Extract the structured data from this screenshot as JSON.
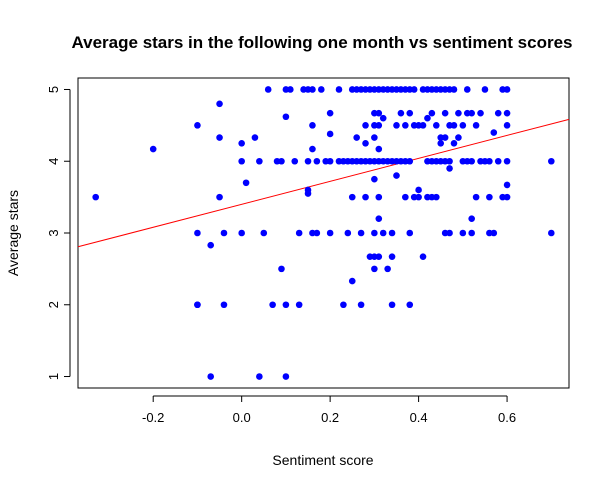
{
  "chart_data": {
    "type": "scatter",
    "title": "Average stars in the following one month vs sentiment scores",
    "xlabel": "Sentiment score",
    "ylabel": "Average stars",
    "xlim": [
      -0.37,
      0.74
    ],
    "ylim": [
      0.84,
      5.16
    ],
    "x_ticks": [
      "-0.2",
      "0.0",
      "0.2",
      "0.4",
      "0.6"
    ],
    "x_tick_values": [
      -0.2,
      0.0,
      0.2,
      0.4,
      0.6
    ],
    "y_ticks": [
      "1",
      "2",
      "3",
      "4",
      "5"
    ],
    "y_tick_values": [
      1,
      2,
      3,
      4,
      5
    ],
    "grid": false,
    "point_color": "#0000ff",
    "regression_line": {
      "color": "#ff0000",
      "intercept": 3.4,
      "slope": 1.6
    },
    "points": [
      [
        -0.33,
        3.5
      ],
      [
        -0.2,
        4.17
      ],
      [
        -0.1,
        4.5
      ],
      [
        -0.1,
        3.0
      ],
      [
        -0.1,
        2.0
      ],
      [
        -0.1,
        2.0
      ],
      [
        -0.07,
        2.83
      ],
      [
        -0.07,
        1.0
      ],
      [
        -0.05,
        4.8
      ],
      [
        -0.05,
        4.33
      ],
      [
        -0.05,
        3.5
      ],
      [
        -0.04,
        3.0
      ],
      [
        -0.04,
        2.0
      ],
      [
        0.0,
        4.25
      ],
      [
        0.0,
        4.0
      ],
      [
        0.0,
        3.0
      ],
      [
        0.01,
        3.7
      ],
      [
        0.03,
        4.33
      ],
      [
        0.04,
        4.0
      ],
      [
        0.04,
        1.0
      ],
      [
        0.05,
        3.0
      ],
      [
        0.06,
        5.0
      ],
      [
        0.07,
        2.0
      ],
      [
        0.08,
        4.0
      ],
      [
        0.09,
        4.0
      ],
      [
        0.09,
        2.5
      ],
      [
        0.1,
        5.0
      ],
      [
        0.1,
        4.62
      ],
      [
        0.1,
        2.0
      ],
      [
        0.1,
        1.0
      ],
      [
        0.11,
        5.0
      ],
      [
        0.12,
        4.0
      ],
      [
        0.13,
        3.0
      ],
      [
        0.13,
        2.0
      ],
      [
        0.14,
        5.0
      ],
      [
        0.15,
        5.0
      ],
      [
        0.15,
        4.0
      ],
      [
        0.15,
        3.6
      ],
      [
        0.15,
        3.55
      ],
      [
        0.16,
        5.0
      ],
      [
        0.16,
        4.5
      ],
      [
        0.16,
        4.17
      ],
      [
        0.16,
        3.0
      ],
      [
        0.17,
        4.0
      ],
      [
        0.17,
        3.0
      ],
      [
        0.18,
        5.0
      ],
      [
        0.19,
        4.0
      ],
      [
        0.2,
        4.67
      ],
      [
        0.2,
        4.38
      ],
      [
        0.2,
        4.0
      ],
      [
        0.2,
        3.0
      ],
      [
        0.22,
        5.0
      ],
      [
        0.22,
        4.0
      ],
      [
        0.23,
        4.0
      ],
      [
        0.23,
        2.0
      ],
      [
        0.24,
        4.0
      ],
      [
        0.24,
        3.0
      ],
      [
        0.25,
        5.0
      ],
      [
        0.25,
        4.0
      ],
      [
        0.25,
        3.5
      ],
      [
        0.25,
        2.33
      ],
      [
        0.26,
        5.0
      ],
      [
        0.26,
        4.33
      ],
      [
        0.26,
        4.0
      ],
      [
        0.27,
        5.0
      ],
      [
        0.27,
        4.0
      ],
      [
        0.27,
        3.0
      ],
      [
        0.27,
        2.0
      ],
      [
        0.28,
        5.0
      ],
      [
        0.28,
        4.5
      ],
      [
        0.28,
        4.25
      ],
      [
        0.28,
        4.0
      ],
      [
        0.28,
        3.5
      ],
      [
        0.29,
        5.0
      ],
      [
        0.29,
        4.0
      ],
      [
        0.29,
        2.67
      ],
      [
        0.3,
        5.0
      ],
      [
        0.3,
        4.67
      ],
      [
        0.3,
        4.5
      ],
      [
        0.3,
        4.33
      ],
      [
        0.3,
        4.0
      ],
      [
        0.3,
        3.75
      ],
      [
        0.3,
        3.0
      ],
      [
        0.3,
        2.67
      ],
      [
        0.3,
        2.5
      ],
      [
        0.31,
        5.0
      ],
      [
        0.31,
        4.67
      ],
      [
        0.31,
        4.5
      ],
      [
        0.31,
        4.17
      ],
      [
        0.31,
        4.0
      ],
      [
        0.31,
        3.5
      ],
      [
        0.31,
        3.2
      ],
      [
        0.31,
        2.67
      ],
      [
        0.32,
        5.0
      ],
      [
        0.32,
        4.6
      ],
      [
        0.32,
        4.0
      ],
      [
        0.32,
        3.0
      ],
      [
        0.33,
        5.0
      ],
      [
        0.33,
        4.0
      ],
      [
        0.33,
        2.5
      ],
      [
        0.34,
        5.0
      ],
      [
        0.34,
        4.0
      ],
      [
        0.34,
        3.0
      ],
      [
        0.34,
        2.67
      ],
      [
        0.34,
        2.0
      ],
      [
        0.35,
        5.0
      ],
      [
        0.35,
        4.5
      ],
      [
        0.35,
        4.0
      ],
      [
        0.35,
        3.8
      ],
      [
        0.36,
        5.0
      ],
      [
        0.36,
        4.67
      ],
      [
        0.36,
        4.0
      ],
      [
        0.37,
        5.0
      ],
      [
        0.37,
        4.5
      ],
      [
        0.37,
        4.0
      ],
      [
        0.37,
        3.5
      ],
      [
        0.38,
        5.0
      ],
      [
        0.38,
        4.67
      ],
      [
        0.38,
        4.0
      ],
      [
        0.38,
        3.0
      ],
      [
        0.38,
        2.0
      ],
      [
        0.39,
        5.0
      ],
      [
        0.39,
        4.5
      ],
      [
        0.39,
        3.5
      ],
      [
        0.4,
        4.5
      ],
      [
        0.4,
        3.6
      ],
      [
        0.4,
        3.5
      ],
      [
        0.41,
        5.0
      ],
      [
        0.41,
        4.5
      ],
      [
        0.41,
        2.67
      ],
      [
        0.42,
        5.0
      ],
      [
        0.42,
        4.6
      ],
      [
        0.42,
        4.0
      ],
      [
        0.42,
        3.5
      ],
      [
        0.43,
        5.0
      ],
      [
        0.43,
        4.67
      ],
      [
        0.43,
        4.0
      ],
      [
        0.43,
        3.5
      ],
      [
        0.44,
        5.0
      ],
      [
        0.44,
        4.5
      ],
      [
        0.44,
        4.0
      ],
      [
        0.44,
        3.5
      ],
      [
        0.45,
        5.0
      ],
      [
        0.45,
        4.33
      ],
      [
        0.45,
        4.25
      ],
      [
        0.45,
        4.0
      ],
      [
        0.46,
        5.0
      ],
      [
        0.46,
        4.67
      ],
      [
        0.46,
        4.33
      ],
      [
        0.46,
        4.0
      ],
      [
        0.46,
        3.0
      ],
      [
        0.47,
        5.0
      ],
      [
        0.47,
        4.5
      ],
      [
        0.47,
        4.0
      ],
      [
        0.47,
        3.9
      ],
      [
        0.47,
        3.0
      ],
      [
        0.48,
        5.0
      ],
      [
        0.48,
        4.5
      ],
      [
        0.48,
        4.25
      ],
      [
        0.49,
        4.67
      ],
      [
        0.49,
        4.33
      ],
      [
        0.5,
        4.5
      ],
      [
        0.5,
        4.0
      ],
      [
        0.5,
        3.0
      ],
      [
        0.51,
        5.0
      ],
      [
        0.51,
        4.67
      ],
      [
        0.51,
        4.0
      ],
      [
        0.52,
        4.67
      ],
      [
        0.52,
        4.0
      ],
      [
        0.52,
        3.2
      ],
      [
        0.52,
        3.0
      ],
      [
        0.53,
        4.5
      ],
      [
        0.53,
        3.5
      ],
      [
        0.54,
        4.67
      ],
      [
        0.54,
        4.0
      ],
      [
        0.55,
        5.0
      ],
      [
        0.55,
        4.0
      ],
      [
        0.56,
        4.0
      ],
      [
        0.56,
        3.5
      ],
      [
        0.56,
        3.0
      ],
      [
        0.57,
        4.4
      ],
      [
        0.57,
        3.0
      ],
      [
        0.58,
        4.67
      ],
      [
        0.58,
        4.0
      ],
      [
        0.59,
        5.0
      ],
      [
        0.59,
        3.5
      ],
      [
        0.6,
        5.0
      ],
      [
        0.6,
        4.67
      ],
      [
        0.6,
        4.5
      ],
      [
        0.6,
        4.0
      ],
      [
        0.6,
        3.67
      ],
      [
        0.6,
        3.5
      ],
      [
        0.7,
        4.0
      ],
      [
        0.7,
        3.0
      ]
    ]
  }
}
